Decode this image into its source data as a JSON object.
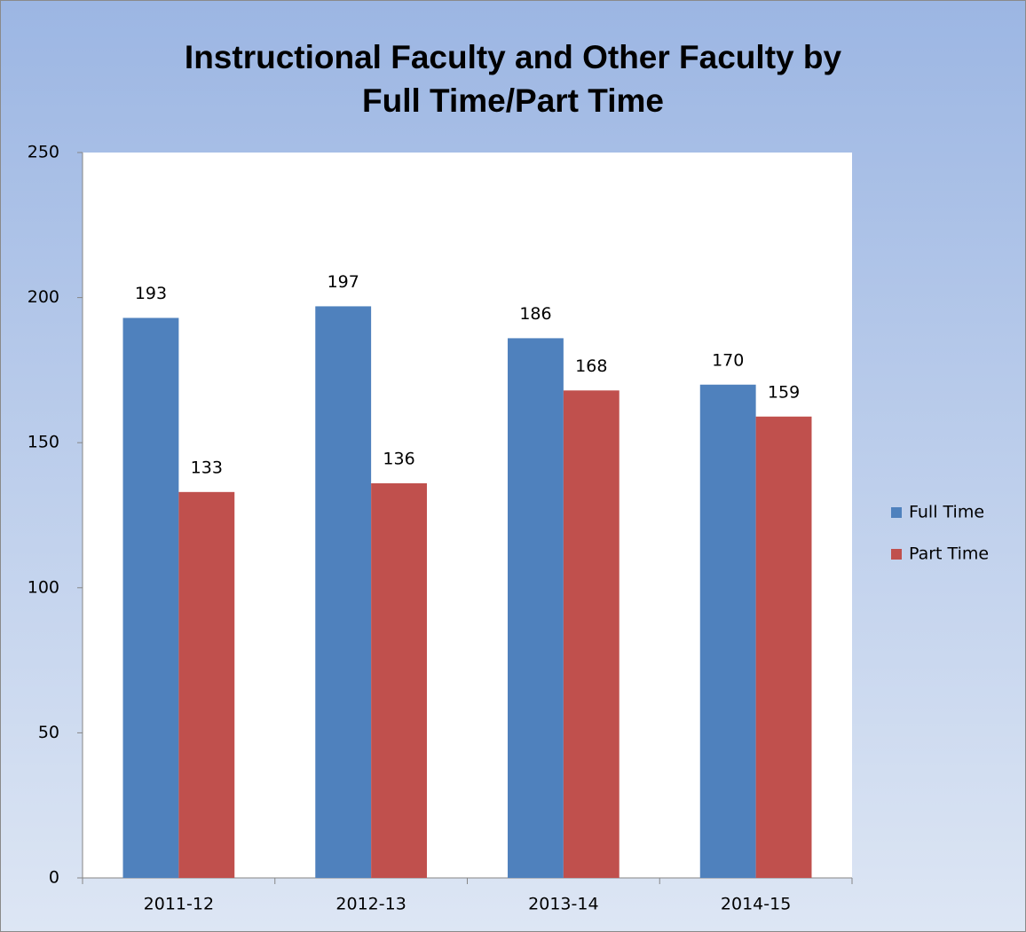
{
  "chart_data": {
    "type": "bar",
    "title": [
      "Instructional Faculty and Other Faculty by",
      "Full Time/Part Time"
    ],
    "categories": [
      "2011-12",
      "2012-13",
      "2013-14",
      "2014-15"
    ],
    "series": [
      {
        "name": "Full Time",
        "color": "#4f81bd",
        "values": [
          193,
          197,
          186,
          170
        ]
      },
      {
        "name": "Part Time",
        "color": "#c0504d",
        "values": [
          133,
          136,
          168,
          159
        ]
      }
    ],
    "ylim": [
      0,
      250
    ],
    "yticks": [
      0,
      50,
      100,
      150,
      200,
      250
    ],
    "grid": false,
    "legend": "right"
  }
}
